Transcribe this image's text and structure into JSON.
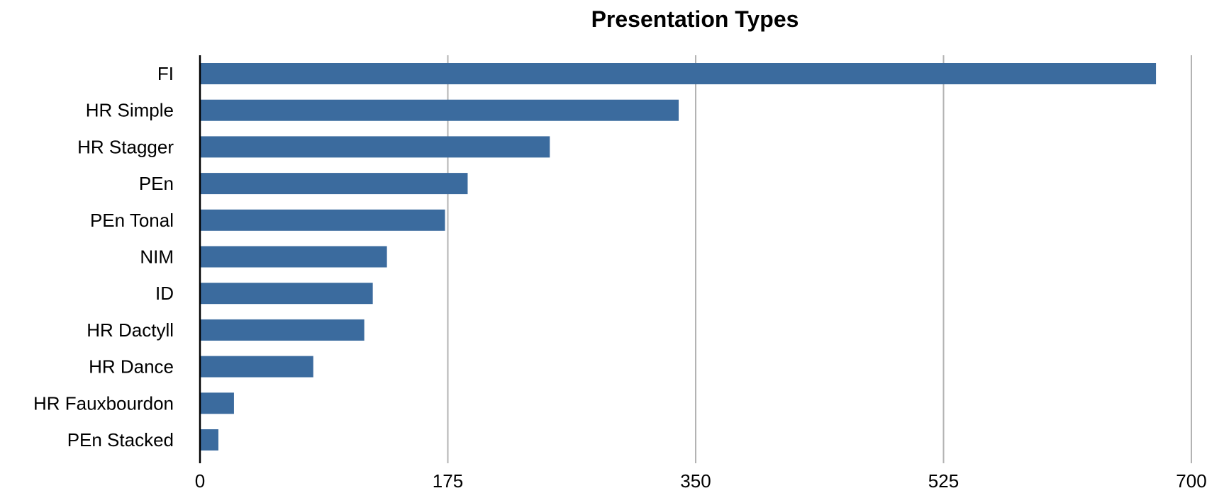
{
  "chart_data": {
    "type": "bar",
    "orientation": "horizontal",
    "title": "Presentation Types",
    "xlabel": "",
    "ylabel": "",
    "categories": [
      "FI",
      "HR Simple",
      "HR Stagger",
      "PEn",
      "PEn Tonal",
      "NIM",
      "ID",
      "HR Dactyll",
      "HR Dance",
      "HR Fauxbourdon",
      "PEn Stacked"
    ],
    "values": [
      675,
      338,
      247,
      189,
      173,
      132,
      122,
      116,
      80,
      24,
      13
    ],
    "xlim": [
      0,
      700
    ],
    "ticks": [
      0,
      175,
      350,
      525,
      700
    ],
    "tick_labels": [
      "0",
      "175",
      "350",
      "525",
      "700"
    ],
    "grid": "vertical",
    "legend": "none",
    "bar_color": "#3B6B9E",
    "grid_color": "#B3B3B3",
    "axis_color": "#000000"
  }
}
